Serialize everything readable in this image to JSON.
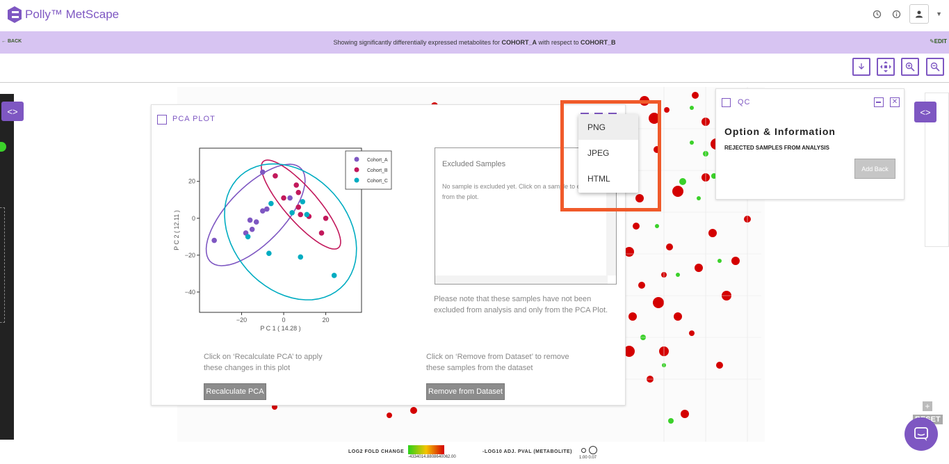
{
  "app": {
    "name": "Polly™ MetScape",
    "brand_color": "#7e57c2"
  },
  "banner": {
    "back_label": "BACK",
    "text_prefix": "Showing significantly differentially expressed metabolites for ",
    "cohort_a": "COHORT_A",
    "text_middle": " with respect to ",
    "cohort_b": "COHORT_B",
    "edit_label": "EDIT"
  },
  "toolbar": {
    "icons": [
      "download-icon",
      "move-icon",
      "zoom-in-icon",
      "zoom-out-icon"
    ]
  },
  "pca_panel": {
    "title": "PCA PLOT",
    "excluded_title": "Excluded Samples",
    "excluded_body": "No sample is excluded yet. Click on a sample to exclude it from the plot.",
    "note": "Please note that these samples have not been excluded from analysis and only from the PCA Plot.",
    "hint_recalc": "Click on ‘Recalculate PCA’ to apply these changes in this plot",
    "hint_remove": "Click on ‘Remove from Dataset’ to remove these samples from the dataset",
    "recalc_button": "Recalculate PCA",
    "remove_button": "Remove from Dataset"
  },
  "chart_data": {
    "type": "scatter",
    "xlabel": "P C 1 ( 14.28 )",
    "ylabel": "P C 2 ( 12.11 )",
    "xticks": [
      -20,
      0,
      20
    ],
    "yticks": [
      20,
      0,
      -20,
      -40
    ],
    "xlim": [
      -40,
      37
    ],
    "ylim": [
      -51,
      38
    ],
    "legend_position": "top-right",
    "series": [
      {
        "name": "Cohort_A",
        "color": "#7e57c2",
        "points": [
          [
            -10,
            25
          ],
          [
            -33,
            -12
          ],
          [
            -18,
            -8
          ],
          [
            -15,
            -6
          ],
          [
            -13,
            -2
          ],
          [
            -10,
            4
          ],
          [
            -8,
            5
          ],
          [
            -16,
            -1
          ],
          [
            3,
            11
          ]
        ]
      },
      {
        "name": "Cohort_B",
        "color": "#c2185b",
        "points": [
          [
            -4,
            23
          ],
          [
            6,
            18
          ],
          [
            7,
            14
          ],
          [
            0,
            11
          ],
          [
            7,
            6
          ],
          [
            8,
            2
          ],
          [
            20,
            0
          ],
          [
            18,
            -8
          ],
          [
            12,
            1
          ]
        ]
      },
      {
        "name": "Cohort_C",
        "color": "#00acc1",
        "points": [
          [
            -17,
            -10
          ],
          [
            -6,
            8
          ],
          [
            -7,
            -19
          ],
          [
            4,
            3
          ],
          [
            9,
            9
          ],
          [
            11,
            2
          ],
          [
            8,
            -21
          ],
          [
            24,
            -31
          ]
        ]
      }
    ]
  },
  "qc_panel": {
    "title": "QC",
    "heading": "Option & Information",
    "subheading": "REJECTED SAMPLES FROM ANALYSIS",
    "add_back_button": "Add Back"
  },
  "export_menu": {
    "items": [
      "PNG",
      "JPEG",
      "HTML"
    ],
    "highlight_color": "#f05a2a"
  },
  "footer": {
    "fold_change_label": "LOG2 FOLD CHANGE",
    "fold_change_range": "-4334014.8808640062.00",
    "pval_label": "-LOG10 ADJ. PVAL (METABOLITE)",
    "pval_legend": "1.00   0.07"
  },
  "controls": {
    "reset_label": "RESET"
  }
}
